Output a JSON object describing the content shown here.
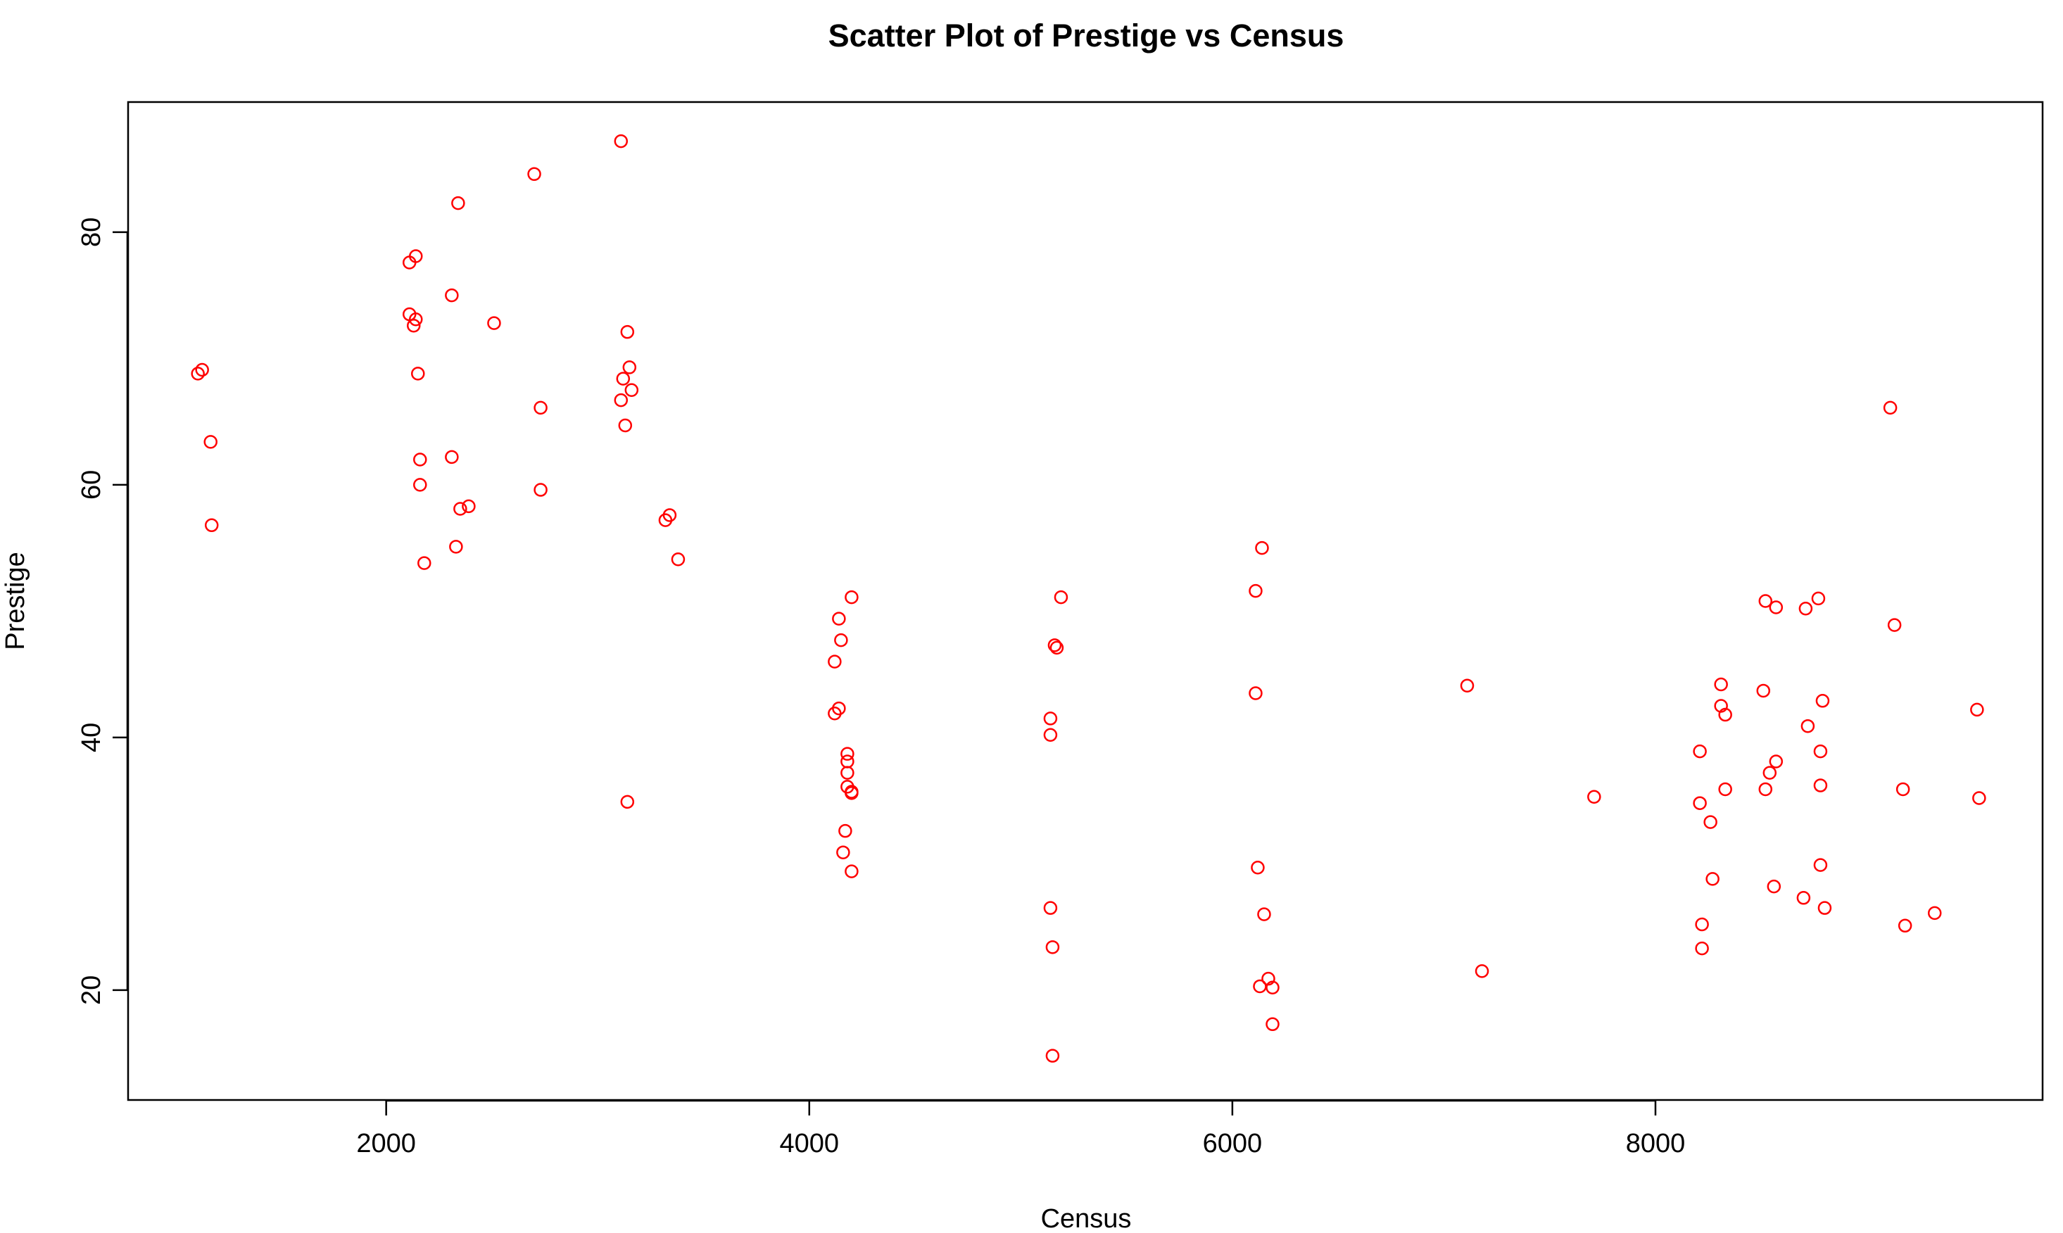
{
  "chart_data": {
    "type": "scatter",
    "title": "Scatter Plot of Prestige vs Census",
    "xlabel": "Census",
    "ylabel": "Prestige",
    "xlim": [
      780,
      9830
    ],
    "ylim": [
      11.3,
      90.3
    ],
    "x_ticks": [
      2000,
      4000,
      6000,
      8000
    ],
    "y_ticks": [
      20,
      40,
      60,
      80
    ],
    "grid": false,
    "legend": "none",
    "point_color": "#ff0000",
    "points": [
      {
        "x": 1110,
        "y": 68.8
      },
      {
        "x": 1130,
        "y": 69.1
      },
      {
        "x": 1170,
        "y": 63.4
      },
      {
        "x": 1175,
        "y": 56.8
      },
      {
        "x": 2110,
        "y": 77.6
      },
      {
        "x": 2140,
        "y": 78.1
      },
      {
        "x": 2110,
        "y": 73.5
      },
      {
        "x": 2140,
        "y": 73.1
      },
      {
        "x": 2130,
        "y": 72.6
      },
      {
        "x": 2150,
        "y": 68.8
      },
      {
        "x": 2160,
        "y": 62.0
      },
      {
        "x": 2160,
        "y": 60.0
      },
      {
        "x": 2180,
        "y": 53.8
      },
      {
        "x": 2310,
        "y": 75.0
      },
      {
        "x": 2310,
        "y": 62.2
      },
      {
        "x": 2340,
        "y": 82.3
      },
      {
        "x": 2330,
        "y": 55.1
      },
      {
        "x": 2350,
        "y": 58.1
      },
      {
        "x": 2390,
        "y": 58.3
      },
      {
        "x": 2510,
        "y": 72.8
      },
      {
        "x": 2700,
        "y": 84.6
      },
      {
        "x": 2730,
        "y": 66.1
      },
      {
        "x": 2730,
        "y": 59.6
      },
      {
        "x": 3110,
        "y": 87.2
      },
      {
        "x": 3140,
        "y": 72.1
      },
      {
        "x": 3120,
        "y": 68.4
      },
      {
        "x": 3150,
        "y": 69.3
      },
      {
        "x": 3160,
        "y": 67.5
      },
      {
        "x": 3110,
        "y": 66.7
      },
      {
        "x": 3130,
        "y": 64.7
      },
      {
        "x": 3140,
        "y": 34.9
      },
      {
        "x": 3320,
        "y": 57.2
      },
      {
        "x": 3340,
        "y": 57.6
      },
      {
        "x": 3380,
        "y": 54.1
      },
      {
        "x": 4200,
        "y": 51.1
      },
      {
        "x": 4140,
        "y": 49.4
      },
      {
        "x": 4150,
        "y": 47.7
      },
      {
        "x": 4120,
        "y": 46.0
      },
      {
        "x": 4120,
        "y": 41.9
      },
      {
        "x": 4140,
        "y": 42.3
      },
      {
        "x": 4180,
        "y": 38.7
      },
      {
        "x": 4180,
        "y": 38.1
      },
      {
        "x": 4180,
        "y": 37.2
      },
      {
        "x": 4180,
        "y": 36.1
      },
      {
        "x": 4200,
        "y": 35.7
      },
      {
        "x": 4200,
        "y": 35.6
      },
      {
        "x": 4170,
        "y": 32.6
      },
      {
        "x": 4160,
        "y": 30.9
      },
      {
        "x": 4200,
        "y": 29.4
      },
      {
        "x": 5190,
        "y": 51.1
      },
      {
        "x": 5160,
        "y": 47.3
      },
      {
        "x": 5170,
        "y": 47.1
      },
      {
        "x": 5140,
        "y": 41.5
      },
      {
        "x": 5140,
        "y": 40.2
      },
      {
        "x": 5140,
        "y": 26.5
      },
      {
        "x": 5150,
        "y": 23.4
      },
      {
        "x": 5150,
        "y": 14.8
      },
      {
        "x": 6140,
        "y": 55.0
      },
      {
        "x": 6110,
        "y": 51.6
      },
      {
        "x": 6110,
        "y": 43.5
      },
      {
        "x": 6120,
        "y": 29.7
      },
      {
        "x": 6150,
        "y": 26.0
      },
      {
        "x": 6170,
        "y": 20.9
      },
      {
        "x": 6130,
        "y": 20.3
      },
      {
        "x": 6190,
        "y": 20.2
      },
      {
        "x": 6190,
        "y": 17.3
      },
      {
        "x": 7110,
        "y": 44.1
      },
      {
        "x": 7180,
        "y": 21.5
      },
      {
        "x": 7710,
        "y": 35.3
      },
      {
        "x": 8210,
        "y": 38.9
      },
      {
        "x": 8210,
        "y": 34.8
      },
      {
        "x": 8260,
        "y": 33.3
      },
      {
        "x": 8270,
        "y": 28.8
      },
      {
        "x": 8220,
        "y": 25.2
      },
      {
        "x": 8220,
        "y": 23.3
      },
      {
        "x": 8310,
        "y": 44.2
      },
      {
        "x": 8310,
        "y": 42.5
      },
      {
        "x": 8330,
        "y": 41.8
      },
      {
        "x": 8330,
        "y": 35.9
      },
      {
        "x": 8520,
        "y": 50.8
      },
      {
        "x": 8570,
        "y": 50.3
      },
      {
        "x": 8510,
        "y": 43.7
      },
      {
        "x": 8570,
        "y": 38.1
      },
      {
        "x": 8540,
        "y": 37.2
      },
      {
        "x": 8520,
        "y": 35.9
      },
      {
        "x": 8560,
        "y": 28.2
      },
      {
        "x": 8710,
        "y": 50.2
      },
      {
        "x": 8770,
        "y": 51.0
      },
      {
        "x": 8790,
        "y": 42.9
      },
      {
        "x": 8720,
        "y": 40.9
      },
      {
        "x": 8780,
        "y": 38.9
      },
      {
        "x": 8780,
        "y": 36.2
      },
      {
        "x": 8780,
        "y": 29.9
      },
      {
        "x": 8700,
        "y": 27.3
      },
      {
        "x": 8800,
        "y": 26.5
      },
      {
        "x": 9110,
        "y": 66.1
      },
      {
        "x": 9130,
        "y": 48.9
      },
      {
        "x": 9170,
        "y": 35.9
      },
      {
        "x": 9180,
        "y": 25.1
      },
      {
        "x": 9320,
        "y": 26.1
      },
      {
        "x": 9520,
        "y": 42.2
      },
      {
        "x": 9530,
        "y": 35.2
      }
    ]
  }
}
